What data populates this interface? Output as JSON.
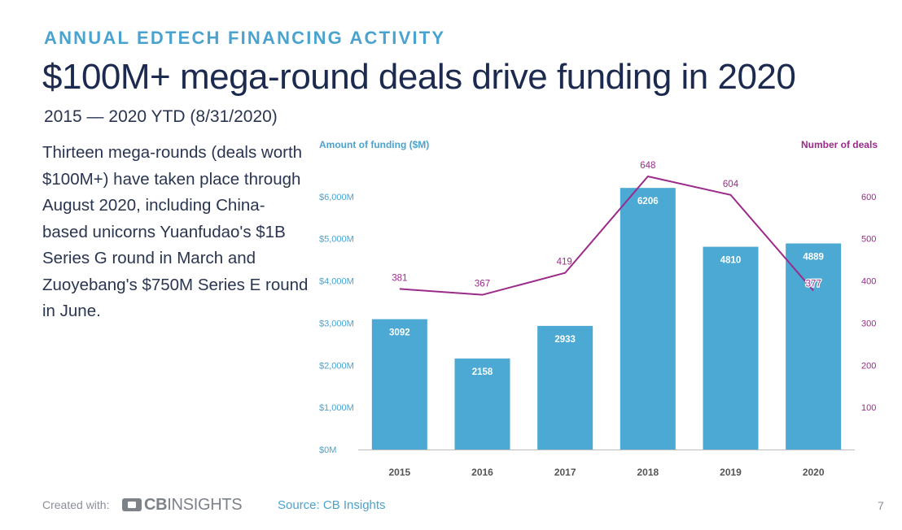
{
  "header": {
    "eyebrow": "ANNUAL EDTECH FINANCING ACTIVITY",
    "title": "$100M+ mega-round deals drive funding in 2020",
    "subtitle": "2015 — 2020 YTD (8/31/2020)"
  },
  "body": {
    "lines": [
      "Thirteen mega-rounds (deals worth",
      "$100M+) have taken place through",
      "August 2020, including China-",
      "based unicorns Yuanfudao's $1B",
      "Series G round in March and",
      "Zuoyebang's $750M Series E round",
      "in June."
    ]
  },
  "chart_data": {
    "type": "bar",
    "categories": [
      "2015",
      "2016",
      "2017",
      "2018",
      "2019",
      "2020"
    ],
    "series": [
      {
        "name": "Amount of funding ($M)",
        "type": "bar",
        "axis": "left",
        "color": "#4ba9d3",
        "values": [
          3092,
          2158,
          2933,
          6206,
          4810,
          4889
        ]
      },
      {
        "name": "Number of deals",
        "type": "line",
        "axis": "right",
        "color": "#9b2a8a",
        "values": [
          381,
          367,
          419,
          648,
          604,
          377
        ]
      }
    ],
    "ylabel_left": "Amount of funding ($M)",
    "ylabel_right": "Number of deals",
    "ylim_left": [
      0,
      7000
    ],
    "ylim_right": [
      0,
      700
    ],
    "yticks_left": [
      "$0M",
      "$1,000M",
      "$2,000M",
      "$3,000M",
      "$4,000M",
      "$5,000M",
      "$6,000M"
    ],
    "yticks_right": [
      "100",
      "200",
      "300",
      "400",
      "500",
      "600"
    ],
    "grid": false,
    "colors": {
      "bar": "#4ba9d3",
      "line": "#9b2a8a",
      "axis_left": "#4aa3cf",
      "axis_right": "#9b2a8a",
      "category": "#555555"
    }
  },
  "footer": {
    "created_with": "Created with:",
    "logo_cb": "CB",
    "logo_insights": "INSIGHTS",
    "source": "Source: CB Insights",
    "page": "7"
  }
}
